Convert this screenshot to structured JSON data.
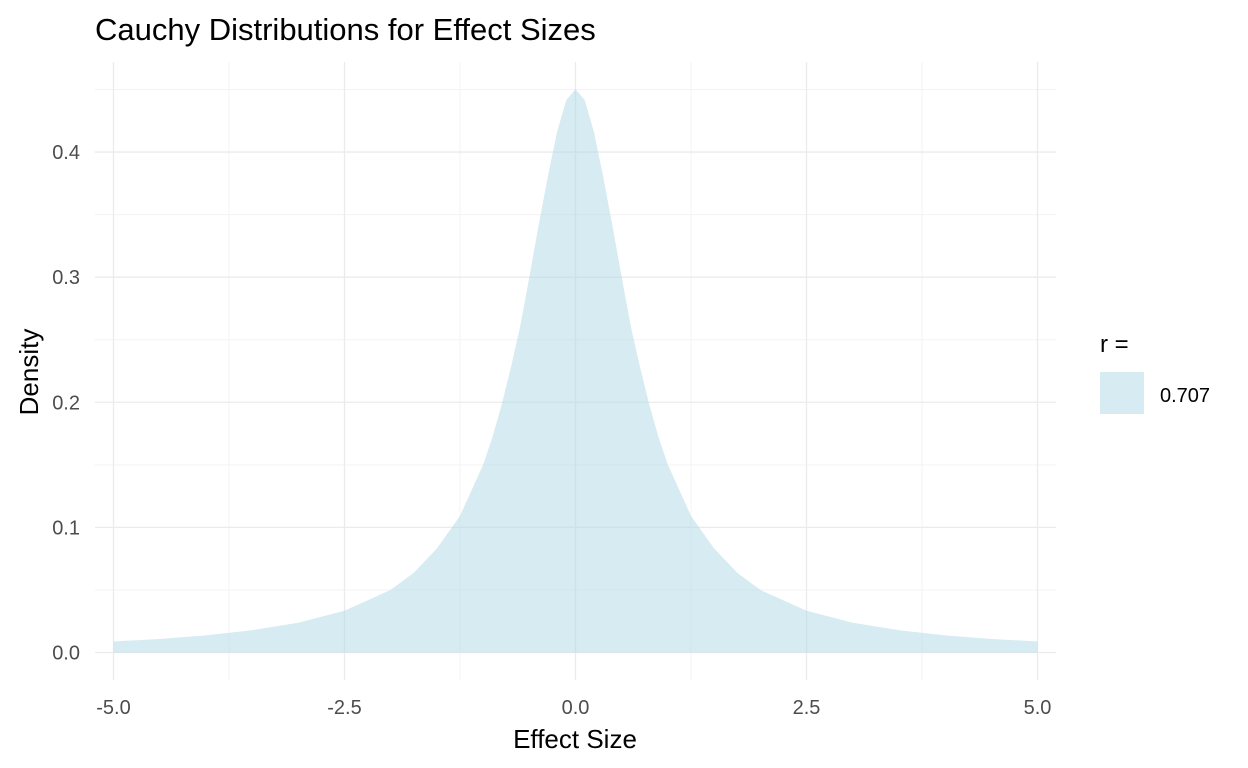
{
  "chart_data": {
    "type": "area",
    "title": "Cauchy Distributions for Effect Sizes",
    "xlabel": "Effect Size",
    "ylabel": "Density",
    "xlim": [
      -5.2,
      5.2
    ],
    "ylim": [
      -0.022,
      0.472
    ],
    "x_ticks": [
      -5.0,
      -2.5,
      0.0,
      2.5,
      5.0
    ],
    "x_tick_labels": [
      "-5.0",
      "-2.5",
      "0.0",
      "2.5",
      "5.0"
    ],
    "y_ticks": [
      0.0,
      0.1,
      0.2,
      0.3,
      0.4
    ],
    "y_tick_labels": [
      "0.0",
      "0.1",
      "0.2",
      "0.3",
      "0.4"
    ],
    "grid": true,
    "legend_position": "right",
    "legend_title": "r =",
    "series": [
      {
        "name": "0.707",
        "color": "#add8e6",
        "opacity": 0.5,
        "x": [
          -5.0,
          -4.5,
          -4.0,
          -3.5,
          -3.0,
          -2.5,
          -2.0,
          -1.75,
          -1.5,
          -1.25,
          -1.0,
          -0.9,
          -0.8,
          -0.7,
          -0.6,
          -0.5,
          -0.4,
          -0.3,
          -0.2,
          -0.1,
          0.0,
          0.1,
          0.2,
          0.3,
          0.4,
          0.5,
          0.6,
          0.7,
          0.8,
          0.9,
          1.0,
          1.25,
          1.5,
          1.75,
          2.0,
          2.5,
          3.0,
          3.5,
          4.0,
          4.5,
          5.0
        ],
        "y": [
          0.0088,
          0.0108,
          0.0137,
          0.0178,
          0.0238,
          0.0334,
          0.05,
          0.0637,
          0.0831,
          0.1092,
          0.15,
          0.1717,
          0.1976,
          0.2275,
          0.2601,
          0.2998,
          0.341,
          0.3801,
          0.4159,
          0.4415,
          0.4502,
          0.4415,
          0.4159,
          0.3801,
          0.341,
          0.2998,
          0.2601,
          0.2275,
          0.1976,
          0.1717,
          0.15,
          0.1092,
          0.0831,
          0.0637,
          0.05,
          0.0334,
          0.0238,
          0.0178,
          0.0137,
          0.0108,
          0.0088
        ]
      }
    ],
    "colors": {
      "grid_major": "#ebebeb",
      "grid_minor": "#f3f3f3",
      "text": "#000000",
      "tick_text": "#4d4d4d"
    }
  }
}
